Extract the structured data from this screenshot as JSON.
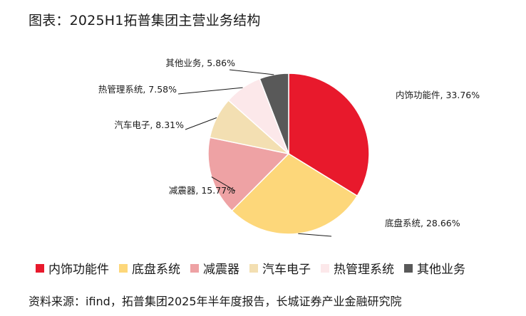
{
  "title": "图表：2025H1拓普集团主营业务结构",
  "source": "资料来源：ifind，拓普集团2025年半年度报告，长城证券产业金融研究院",
  "chart_data": {
    "type": "pie",
    "slices": [
      {
        "name": "内饰功能件",
        "value": 33.76,
        "label": "内饰功能件, 33.76%",
        "color": "#E8192C"
      },
      {
        "name": "底盘系统",
        "value": 28.66,
        "label": "底盘系统, 28.66%",
        "color": "#FDD77A"
      },
      {
        "name": "减震器",
        "value": 15.77,
        "label": "减震器, 15.77%",
        "color": "#EEA2A4"
      },
      {
        "name": "汽车电子",
        "value": 8.31,
        "label": "汽车电子, 8.31%",
        "color": "#F3DFB2"
      },
      {
        "name": "热管理系统",
        "value": 7.58,
        "label": "热管理系统, 7.58%",
        "color": "#FCE8EA"
      },
      {
        "name": "其他业务",
        "value": 5.86,
        "label": "其他业务, 5.86%",
        "color": "#595959"
      }
    ],
    "legend_position": "bottom"
  }
}
